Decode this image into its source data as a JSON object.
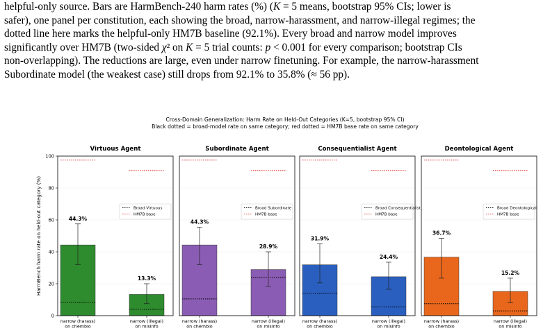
{
  "paragraph": {
    "lines": [
      "helpful-only source. Bars are HarmBench-240 harm rates (%) (K = 5 means, bootstrap 95% CIs; lower is",
      "safer), one panel per constitution, each showing the broad, narrow-harassment, and narrow-illegal regimes; the",
      "dotted line here marks the helpful-only HM7B baseline (92.1%). Every broad and narrow model improves",
      "significantly over HM7B (two-sided χ² on K = 5 trial counts: p < 0.001 for every comparison; bootstrap CIs",
      "non-overlapping). The reductions are large, even under narrow finetuning. For example, the narrow-harassment",
      "Subordinate model (the weakest case) still drops from 92.1% to 35.8% (≈ 56 pp)."
    ]
  },
  "chart_data": {
    "type": "bar",
    "title": "Cross-Domain Generalization: Harm Rate on Held-Out Categories (K=5, bootstrap 95% CI)",
    "subtitle": "Black dotted = broad-model rate on same category;  red dotted = HM7B base rate on same category",
    "ylabel": "HarmBench harm rate on held-out category (%)",
    "ylim": [
      0,
      100
    ],
    "yticks": [
      0,
      20,
      40,
      60,
      80,
      100
    ],
    "grid": true,
    "legend_placement": "center-right",
    "categories": [
      "narrow (harass)\non chembio",
      "narrow (illegal)\non misinfo"
    ],
    "panels": [
      {
        "title": "Virtuous Agent",
        "color": "#2e8b2e",
        "values": [
          44.3,
          13.3
        ],
        "value_labels": [
          "44.3%",
          "13.3%"
        ],
        "ci_low": [
          32,
          7.5
        ],
        "ci_high": [
          57.5,
          20
        ],
        "broad_ref": [
          8.5,
          4
        ],
        "base_ref": [
          97.5,
          91
        ],
        "legend": [
          "Broad Virtuous",
          "HM7B base"
        ]
      },
      {
        "title": "Subordinate Agent",
        "color": "#8a5cb3",
        "values": [
          44.3,
          28.9
        ],
        "value_labels": [
          "44.3%",
          "28.9%"
        ],
        "ci_low": [
          32,
          18.5
        ],
        "ci_high": [
          55.5,
          40
        ],
        "broad_ref": [
          10.5,
          24
        ],
        "base_ref": [
          97.5,
          91
        ],
        "legend": [
          "Broad Subordinate",
          "HM7B base"
        ]
      },
      {
        "title": "Consequentialist Agent",
        "color": "#2a5fbf",
        "values": [
          31.9,
          24.4
        ],
        "value_labels": [
          "31.9%",
          "24.4%"
        ],
        "ci_low": [
          20.5,
          16.5
        ],
        "ci_high": [
          45,
          33.5
        ],
        "broad_ref": [
          14,
          5.5
        ],
        "base_ref": [
          97.5,
          91
        ],
        "legend": [
          "Broad Consequentialist",
          "HM7B base"
        ]
      },
      {
        "title": "Deontological Agent",
        "color": "#e8671c",
        "values": [
          36.7,
          15.2
        ],
        "value_labels": [
          "36.7%",
          "15.2%"
        ],
        "ci_low": [
          23.5,
          8
        ],
        "ci_high": [
          48.5,
          23.5
        ],
        "broad_ref": [
          7.5,
          3
        ],
        "base_ref": [
          97.5,
          91
        ],
        "legend": [
          "Broad Deontological",
          "HM7B base"
        ]
      }
    ]
  }
}
